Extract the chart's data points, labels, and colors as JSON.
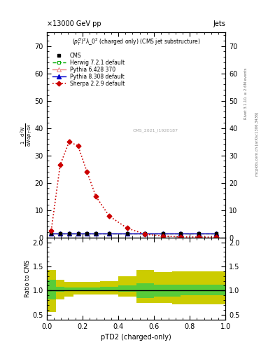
{
  "title_top_left": "13000 GeV pp",
  "title_top_right": "Jets",
  "plot_title": "$(p_T^D)^2\\lambda\\_0^2$ (charged only) (CMS jet substructure)",
  "ylabel_main_parts": [
    "mathrm d²N",
    "mathrm d p_T mathrm d lambda"
  ],
  "ylabel_ratio": "Ratio to CMS",
  "xlabel": "pTD2 (charged-only)",
  "rivet_label": "Rivet 3.1.10, ≥ 2.6M events",
  "mcplots_label": "mcplots.cern.ch [arXiv:1306.3436]",
  "inspire_label": "CMS_2021_I1920187",
  "cms_label": "CMS",
  "main_ylim": [
    0,
    75
  ],
  "main_yticks": [
    0,
    10,
    20,
    30,
    40,
    50,
    60,
    70
  ],
  "ratio_ylim": [
    0.4,
    2.1
  ],
  "ratio_yticks": [
    0.5,
    1.0,
    1.5,
    2.0
  ],
  "x_lim": [
    0,
    1.0
  ],
  "sherpa_x": [
    0.025,
    0.075,
    0.125,
    0.175,
    0.225,
    0.275,
    0.35,
    0.45,
    0.55,
    0.65,
    0.75,
    0.85,
    0.95
  ],
  "sherpa_y": [
    2.5,
    26.5,
    35.0,
    33.5,
    24.0,
    15.0,
    7.8,
    3.4,
    1.2,
    0.5,
    0.2,
    0.15,
    0.1
  ],
  "cms_x": [
    0.025,
    0.075,
    0.125,
    0.175,
    0.225,
    0.275,
    0.35,
    0.45,
    0.55,
    0.65,
    0.75,
    0.85,
    0.95
  ],
  "cms_y": [
    1.5,
    1.5,
    1.5,
    1.5,
    1.5,
    1.5,
    1.5,
    1.5,
    1.5,
    1.5,
    1.5,
    1.5,
    1.5
  ],
  "herwig_x": [
    0.025,
    0.075,
    0.125,
    0.175,
    0.225,
    0.275,
    0.35,
    0.45,
    0.55,
    0.65,
    0.75,
    0.85,
    0.95
  ],
  "herwig_y": [
    1.5,
    1.5,
    1.5,
    1.5,
    1.5,
    1.5,
    1.5,
    1.5,
    1.5,
    1.5,
    1.5,
    1.5,
    1.5
  ],
  "pythia6_x": [
    0.025,
    0.075,
    0.125,
    0.175,
    0.225,
    0.275,
    0.35,
    0.45,
    0.55,
    0.65,
    0.75,
    0.85,
    0.95
  ],
  "pythia6_y": [
    1.5,
    1.5,
    1.5,
    1.5,
    1.5,
    1.5,
    1.5,
    1.5,
    1.5,
    1.5,
    1.5,
    1.5,
    1.5
  ],
  "pythia8_x": [
    0.025,
    0.075,
    0.125,
    0.175,
    0.225,
    0.275,
    0.35,
    0.45,
    0.55,
    0.65,
    0.75,
    0.85,
    0.95
  ],
  "pythia8_y": [
    1.5,
    1.5,
    1.5,
    1.5,
    1.5,
    1.5,
    1.5,
    1.5,
    1.5,
    1.5,
    1.5,
    1.5,
    1.5
  ],
  "ratio_x_edges": [
    0.0,
    0.05,
    0.1,
    0.15,
    0.2,
    0.3,
    0.4,
    0.5,
    0.6,
    0.7,
    0.75,
    1.0
  ],
  "ratio_green_lo": [
    0.82,
    0.98,
    1.0,
    1.0,
    1.0,
    1.0,
    0.97,
    0.85,
    0.88,
    0.88,
    0.9,
    0.9
  ],
  "ratio_green_hi": [
    1.22,
    1.08,
    1.06,
    1.06,
    1.06,
    1.08,
    1.1,
    1.15,
    1.12,
    1.12,
    1.12,
    1.12
  ],
  "ratio_yellow_lo": [
    0.55,
    0.82,
    0.88,
    0.92,
    0.92,
    0.92,
    0.88,
    0.75,
    0.75,
    0.72,
    0.72,
    0.72
  ],
  "ratio_yellow_hi": [
    1.42,
    1.22,
    1.18,
    1.18,
    1.18,
    1.2,
    1.3,
    1.42,
    1.38,
    1.4,
    1.4,
    1.4
  ],
  "color_sherpa": "#cc0000",
  "color_herwig": "#00aa00",
  "color_pythia6": "#ee8888",
  "color_pythia8": "#0000cc",
  "color_cms": "#000000",
  "color_green_band": "#44cc44",
  "color_yellow_band": "#cccc00",
  "background_color": "#ffffff"
}
